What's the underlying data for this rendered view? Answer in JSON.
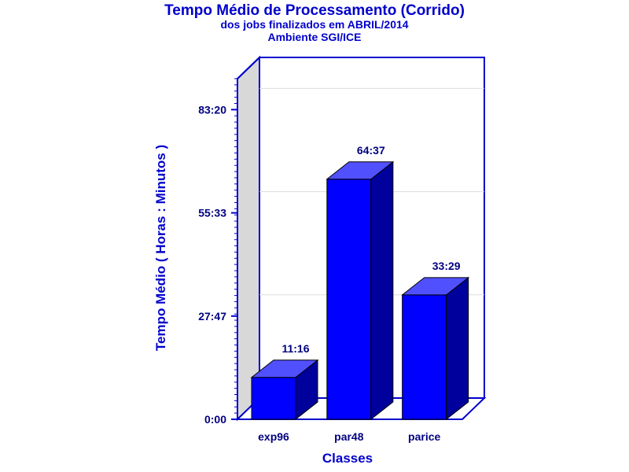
{
  "colors": {
    "accent": "#0000cc",
    "bar_front": "#0000ff",
    "bar_side": "#00009c",
    "bar_top": "#5050ff",
    "wall": "#d8d8d8"
  },
  "chart_data": {
    "type": "bar",
    "title": "Tempo Médio de Processamento (Corrido)",
    "subtitle": "dos jobs finalizados em ABRIL/2014",
    "subtitle2": "Ambiente SGI/ICE",
    "xlabel": "Classes",
    "ylabel": "Tempo Médio ( Horas : Minutos )",
    "categories": [
      "exp96",
      "par48",
      "parice"
    ],
    "values": [
      676,
      3877,
      2009
    ],
    "value_labels": [
      "11:16",
      "64:37",
      "33:29"
    ],
    "value_unit": "minutes",
    "ylim": [
      0,
      5500
    ],
    "yticks": [
      0,
      1667,
      3333,
      5000
    ],
    "ytick_labels": [
      "0:00",
      "27:47",
      "55:33",
      "83:20"
    ],
    "grid": true,
    "legend": "none",
    "three_d": true
  }
}
